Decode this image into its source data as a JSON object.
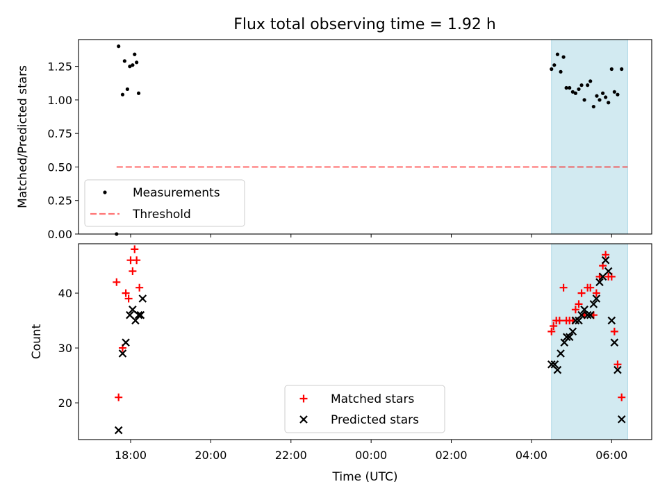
{
  "title": "Flux total observing time = 1.92 h",
  "chart_data": [
    {
      "type": "scatter",
      "panel": "top",
      "title": "Flux total observing time = 1.92 h",
      "xlabel": "",
      "ylabel": "Matched/Predicted stars",
      "x_unit": "hours from 00:00 UTC",
      "xlim": [
        -7.3,
        7.0
      ],
      "ylim": [
        0.0,
        1.45
      ],
      "yticks": [
        "0.00",
        "0.25",
        "0.50",
        "0.75",
        "1.00",
        "1.25"
      ],
      "ytick_values": [
        0,
        0.25,
        0.5,
        0.75,
        1.0,
        1.25
      ],
      "grid": false,
      "legend_position": "lower-left",
      "shaded_region": {
        "x_start": 4.5,
        "x_end": 6.4,
        "color": "#add8e6"
      },
      "threshold": {
        "value": 0.5,
        "x_start": -6.35,
        "x_end": 6.4,
        "color": "#ff0000",
        "label": "Threshold"
      },
      "series": [
        {
          "name": "Measurements",
          "color": "#000000",
          "marker": "dot",
          "points": [
            [
              -6.35,
              0.0
            ],
            [
              -6.3,
              1.4
            ],
            [
              -6.2,
              1.04
            ],
            [
              -6.15,
              1.29
            ],
            [
              -6.08,
              1.08
            ],
            [
              -6.02,
              1.25
            ],
            [
              -5.95,
              1.26
            ],
            [
              -5.9,
              1.34
            ],
            [
              -5.85,
              1.28
            ],
            [
              -5.8,
              1.05
            ],
            [
              4.5,
              1.23
            ],
            [
              4.57,
              1.26
            ],
            [
              4.65,
              1.34
            ],
            [
              4.73,
              1.21
            ],
            [
              4.8,
              1.32
            ],
            [
              4.87,
              1.09
            ],
            [
              4.95,
              1.09
            ],
            [
              5.03,
              1.06
            ],
            [
              5.1,
              1.05
            ],
            [
              5.18,
              1.08
            ],
            [
              5.25,
              1.11
            ],
            [
              5.32,
              1.0
            ],
            [
              5.4,
              1.11
            ],
            [
              5.47,
              1.14
            ],
            [
              5.55,
              0.95
            ],
            [
              5.63,
              1.03
            ],
            [
              5.7,
              1.0
            ],
            [
              5.78,
              1.05
            ],
            [
              5.85,
              1.02
            ],
            [
              5.92,
              0.98
            ],
            [
              6.0,
              1.23
            ],
            [
              6.07,
              1.06
            ],
            [
              6.15,
              1.04
            ],
            [
              6.25,
              1.23
            ]
          ]
        }
      ]
    },
    {
      "type": "scatter",
      "panel": "bottom",
      "xlabel": "Time (UTC)",
      "ylabel": "Count",
      "x_unit": "hours from 00:00 UTC",
      "xlim": [
        -7.3,
        7.0
      ],
      "ylim": [
        13.3,
        49.0
      ],
      "xticks": [
        "18:00",
        "20:00",
        "22:00",
        "00:00",
        "02:00",
        "04:00",
        "06:00"
      ],
      "xtick_values": [
        -6,
        -4,
        -2,
        0,
        2,
        4,
        6
      ],
      "yticks": [
        "20",
        "30",
        "40"
      ],
      "ytick_values": [
        20,
        30,
        40
      ],
      "grid": false,
      "legend_position": "lower-center",
      "shaded_region": {
        "x_start": 4.5,
        "x_end": 6.4,
        "color": "#add8e6"
      },
      "series": [
        {
          "name": "Matched stars",
          "color": "#ff0000",
          "marker": "plus",
          "points": [
            [
              -6.35,
              42
            ],
            [
              -6.3,
              21
            ],
            [
              -6.2,
              30
            ],
            [
              -6.12,
              40
            ],
            [
              -6.05,
              39
            ],
            [
              -6.0,
              46
            ],
            [
              -5.95,
              44
            ],
            [
              -5.9,
              48
            ],
            [
              -5.85,
              46
            ],
            [
              -5.78,
              41
            ],
            [
              4.5,
              33
            ],
            [
              4.55,
              34
            ],
            [
              4.62,
              35
            ],
            [
              4.7,
              35
            ],
            [
              4.8,
              41
            ],
            [
              4.87,
              35
            ],
            [
              4.95,
              35
            ],
            [
              5.03,
              35
            ],
            [
              5.1,
              37
            ],
            [
              5.18,
              38
            ],
            [
              5.25,
              40
            ],
            [
              5.32,
              36
            ],
            [
              5.4,
              41
            ],
            [
              5.47,
              41
            ],
            [
              5.55,
              36
            ],
            [
              5.62,
              40
            ],
            [
              5.7,
              43
            ],
            [
              5.78,
              45
            ],
            [
              5.85,
              47
            ],
            [
              5.92,
              43
            ],
            [
              6.0,
              43
            ],
            [
              6.07,
              33
            ],
            [
              6.15,
              27
            ],
            [
              6.25,
              21
            ]
          ]
        },
        {
          "name": "Predicted stars",
          "color": "#000000",
          "marker": "x",
          "points": [
            [
              -6.3,
              15
            ],
            [
              -6.2,
              29
            ],
            [
              -6.12,
              31
            ],
            [
              -6.02,
              36
            ],
            [
              -5.95,
              37
            ],
            [
              -5.88,
              35
            ],
            [
              -5.8,
              36
            ],
            [
              -5.75,
              36
            ],
            [
              -5.7,
              39
            ],
            [
              4.5,
              27
            ],
            [
              4.58,
              27
            ],
            [
              4.65,
              26
            ],
            [
              4.73,
              29
            ],
            [
              4.82,
              31
            ],
            [
              4.88,
              32
            ],
            [
              4.95,
              32
            ],
            [
              5.03,
              33
            ],
            [
              5.1,
              35
            ],
            [
              5.18,
              35
            ],
            [
              5.25,
              36
            ],
            [
              5.32,
              37
            ],
            [
              5.4,
              36
            ],
            [
              5.47,
              36
            ],
            [
              5.55,
              38
            ],
            [
              5.62,
              39
            ],
            [
              5.7,
              42
            ],
            [
              5.78,
              43
            ],
            [
              5.85,
              46
            ],
            [
              5.92,
              44
            ],
            [
              6.0,
              35
            ],
            [
              6.07,
              31
            ],
            [
              6.15,
              26
            ],
            [
              6.25,
              17
            ]
          ]
        }
      ]
    }
  ]
}
